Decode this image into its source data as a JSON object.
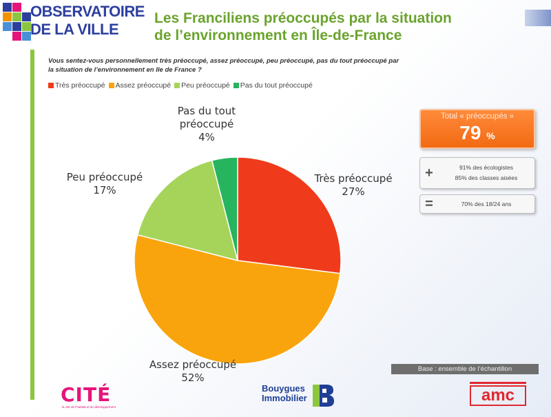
{
  "header": {
    "logo_line1": "OBSERVATOIRE",
    "logo_line2": "DE LA VILLE",
    "title_line1": "Les Franciliens préoccupés par la situation",
    "title_line2": "de l’environnement en Île-de-France",
    "question_line1": "Vous sentez-vous personnellement très préoccupé, assez préoccupé, peu préoccupé, pas du tout préoccupé par",
    "question_line2": "la situation de l’environnement en Ile de France ?"
  },
  "chart_data": {
    "type": "pie",
    "categories": [
      "Très préoccupé",
      "Assez préoccupé",
      "Peu préoccupé",
      "Pas du tout préoccupé"
    ],
    "values": [
      27,
      52,
      17,
      4
    ],
    "colors": [
      "#ef3b1b",
      "#f9a40d",
      "#a6d45a",
      "#27b45e"
    ],
    "legend_position": "top-left",
    "labels": [
      {
        "line1": "Très préoccupé",
        "line2": "27%"
      },
      {
        "line1": "Assez préoccupé",
        "line2": "52%"
      },
      {
        "line1": "Peu préoccupé",
        "line2": "17%"
      },
      {
        "line1": "Pas du tout",
        "line2": "préoccupé",
        "line3": "4%"
      }
    ],
    "legend": [
      "Très préoccupé",
      "Assez préoccupé",
      "Peu préoccupé",
      "Pas du tout préoccupé"
    ]
  },
  "summary": {
    "total_label": "Total « préoccupés »",
    "total_value": "79",
    "total_unit": "%",
    "plus_sign": "+",
    "plus_line1": "91% des écologistes",
    "plus_line2": "85% des classes aisées",
    "minus_sign": "=",
    "minus_line1": "70% des 18/24 ans"
  },
  "footer": {
    "base": "Base : ensemble de l’échantillon",
    "cite_logo": "CITÉ",
    "cite_sub": "la cité de l'habitat et du développement",
    "bouygues_line1": "Bouygues",
    "bouygues_line2": "Immobilier",
    "amc": "amc"
  },
  "colors": {
    "accent_green": "#8cc63f",
    "title_green": "#6aa32d",
    "brand_blue": "#2d3f9e",
    "total_orange": "#f26a12"
  }
}
